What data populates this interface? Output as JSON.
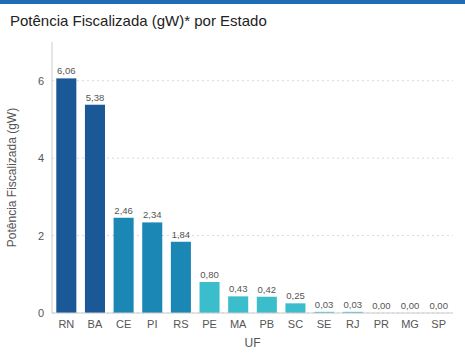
{
  "chart_data": {
    "type": "bar",
    "title": "Potência Fiscalizada (gW)* por Estado",
    "xlabel": "UF",
    "ylabel": "Potência Fiscalizada (gW)",
    "categories": [
      "RN",
      "BA",
      "CE",
      "PI",
      "RS",
      "PE",
      "MA",
      "PB",
      "SC",
      "SE",
      "RJ",
      "PR",
      "MG",
      "SP"
    ],
    "values": [
      6.06,
      5.38,
      2.46,
      2.34,
      1.84,
      0.8,
      0.43,
      0.42,
      0.25,
      0.03,
      0.03,
      0.0,
      0.0,
      0.0
    ],
    "value_labels": [
      "6,06",
      "5,38",
      "2,46",
      "2,34",
      "1,84",
      "0,80",
      "0,43",
      "0,42",
      "0,25",
      "0,03",
      "0,03",
      "0,00",
      "0,00",
      "0,00"
    ],
    "colors": [
      "#1a5897",
      "#1a5897",
      "#1b87b5",
      "#1b87b5",
      "#1b87b5",
      "#3bbdcc",
      "#3bbdcc",
      "#3bbdcc",
      "#3bbdcc",
      "#3bbdcc",
      "#3bbdcc",
      "#3bbdcc",
      "#3bbdcc",
      "#3bbdcc"
    ],
    "ylim": [
      0,
      7.0
    ],
    "yticks": [
      0,
      2,
      4,
      6
    ],
    "grid": true,
    "data_labels": true
  }
}
